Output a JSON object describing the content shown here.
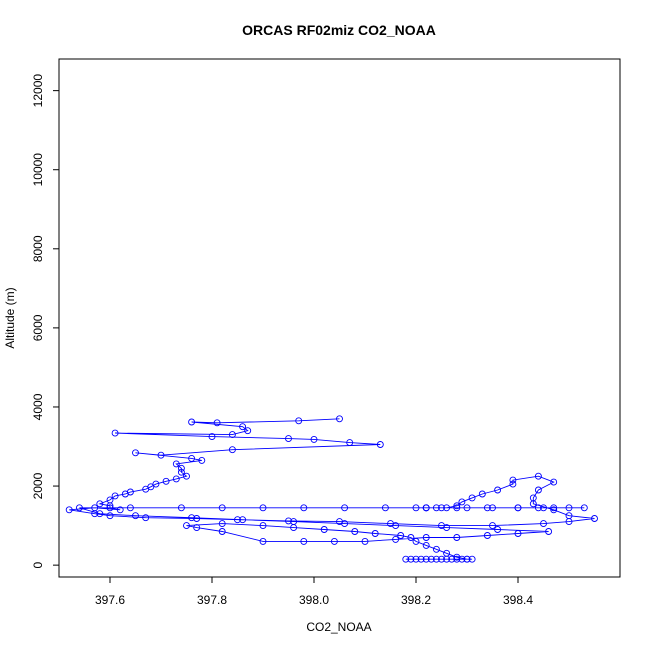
{
  "chart_data": {
    "type": "line",
    "title": "ORCAS RF02miz CO2_NOAA",
    "xlabel": "CO2_NOAA",
    "ylabel": "Altitude (m)",
    "xlim": [
      397.5,
      398.6
    ],
    "ylim": [
      -300,
      12800
    ],
    "x_ticks": [
      397.6,
      397.8,
      398.0,
      398.2,
      398.4
    ],
    "x_tick_labels": [
      "397.6",
      "397.8",
      "398.0",
      "398.2",
      "398.4"
    ],
    "y_ticks": [
      0,
      2000,
      4000,
      6000,
      8000,
      10000,
      12000
    ],
    "y_tick_labels": [
      "0",
      "2000",
      "4000",
      "6000",
      "8000",
      "10000",
      "12000"
    ],
    "grid": false,
    "legend": "none",
    "colors": {
      "series": "#0000ff",
      "axes": "#000000"
    },
    "marker": "open-circle",
    "series": [
      {
        "x": [
          398.05,
          397.97,
          397.81,
          397.76,
          397.86,
          397.87,
          397.84,
          397.61,
          397.8,
          397.95,
          398.0,
          398.07,
          398.13,
          397.84,
          397.7,
          397.65,
          397.76,
          397.78,
          397.73,
          397.74,
          397.74,
          397.75,
          397.73,
          397.71,
          397.69,
          397.68,
          397.67,
          397.64,
          397.63,
          397.61,
          397.6,
          397.58,
          397.6,
          397.6,
          397.62,
          397.57,
          397.52,
          397.57,
          397.6,
          397.67,
          397.77,
          397.85,
          397.95,
          398.05,
          398.15,
          398.25,
          398.35,
          398.45,
          398.5,
          398.55,
          398.5,
          398.47,
          398.43,
          398.43,
          398.44,
          398.47,
          398.44,
          398.39,
          398.39,
          398.36,
          398.33,
          398.31,
          398.29,
          398.28,
          398.26,
          398.24,
          398.22,
          398.2,
          398.22,
          398.25,
          398.3,
          398.35,
          398.4,
          398.45,
          398.5,
          398.53,
          398.47,
          398.44,
          398.4,
          398.34,
          398.28,
          398.22,
          398.14,
          398.06,
          397.98,
          397.9,
          397.82,
          397.74,
          397.64,
          397.54,
          397.58,
          397.65,
          397.76,
          397.86,
          397.96,
          398.06,
          398.16,
          398.26,
          398.36,
          398.46,
          398.4,
          398.34,
          398.28,
          398.22,
          398.16,
          398.1,
          398.04,
          397.98,
          397.9,
          397.82,
          397.77,
          397.75,
          397.82,
          397.9,
          397.96,
          398.02,
          398.08,
          398.12,
          398.17,
          398.19,
          398.2,
          398.22,
          398.24,
          398.26,
          398.28,
          398.3,
          398.31,
          398.29,
          398.27,
          398.25,
          398.23,
          398.21,
          398.19,
          398.18,
          398.2,
          398.22,
          398.24,
          398.26,
          398.28,
          398.3
        ],
        "y": [
          3700,
          3650,
          3600,
          3620,
          3500,
          3400,
          3300,
          3340,
          3250,
          3200,
          3180,
          3100,
          3050,
          2920,
          2780,
          2840,
          2700,
          2650,
          2560,
          2450,
          2350,
          2250,
          2180,
          2120,
          2050,
          1980,
          1920,
          1850,
          1800,
          1750,
          1650,
          1550,
          1500,
          1450,
          1400,
          1450,
          1400,
          1300,
          1250,
          1200,
          1180,
          1150,
          1120,
          1100,
          1050,
          1000,
          1000,
          1050,
          1100,
          1180,
          1250,
          1400,
          1550,
          1700,
          1900,
          2100,
          2250,
          2150,
          2050,
          1900,
          1800,
          1700,
          1600,
          1500,
          1450,
          1450,
          1450,
          1450,
          1450,
          1450,
          1450,
          1450,
          1450,
          1450,
          1450,
          1450,
          1450,
          1450,
          1450,
          1450,
          1450,
          1450,
          1450,
          1450,
          1450,
          1450,
          1450,
          1450,
          1450,
          1450,
          1300,
          1250,
          1200,
          1150,
          1100,
          1050,
          1000,
          950,
          900,
          850,
          800,
          750,
          700,
          700,
          650,
          600,
          600,
          600,
          600,
          850,
          950,
          1000,
          1050,
          1000,
          950,
          900,
          850,
          800,
          750,
          700,
          600,
          500,
          400,
          300,
          200,
          150,
          150,
          150,
          150,
          150,
          150,
          150,
          150,
          150,
          150,
          150,
          150,
          150,
          150,
          150
        ]
      }
    ]
  }
}
